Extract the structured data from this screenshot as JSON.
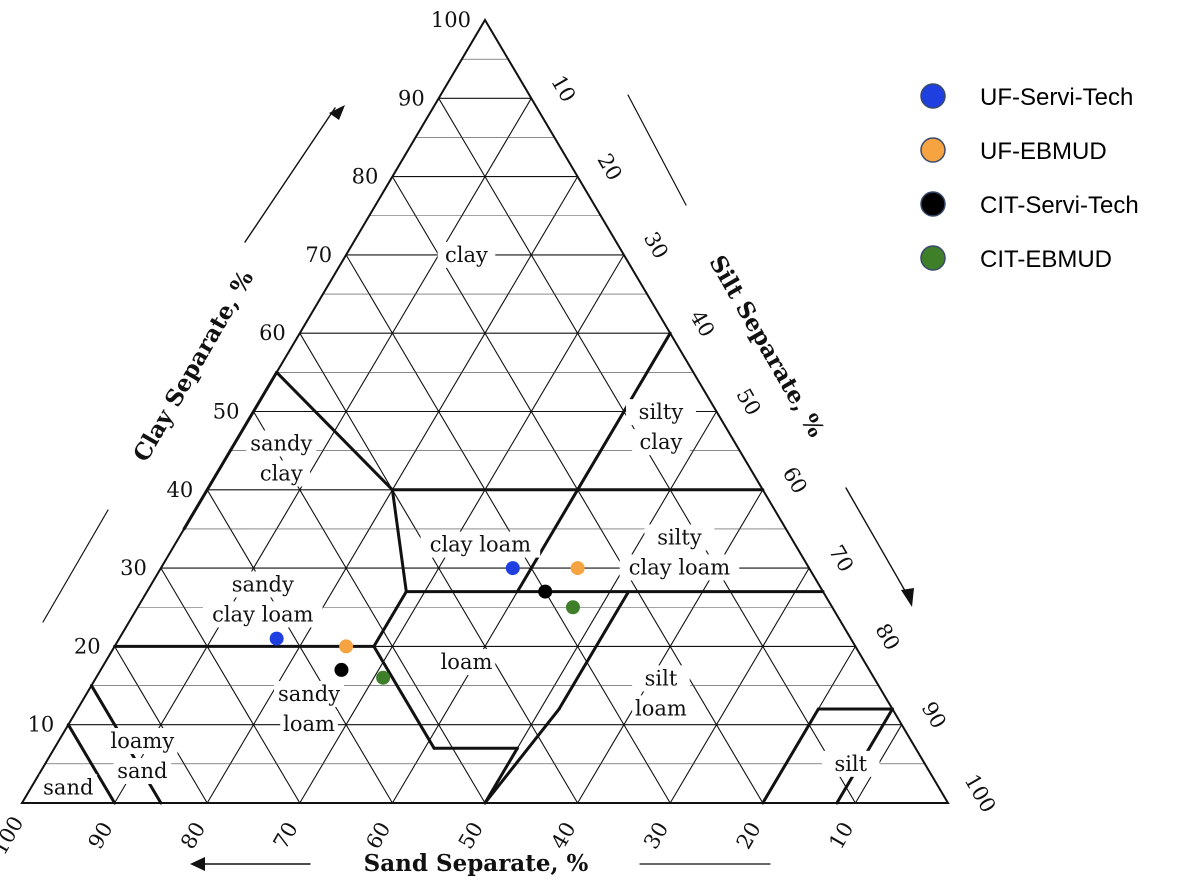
{
  "chart_data": {
    "type": "scatter",
    "subtype": "ternary (USDA soil texture triangle)",
    "axes": {
      "clay": {
        "label": "Clay Separate, %",
        "ticks": [
          "10",
          "20",
          "30",
          "40",
          "50",
          "60",
          "70",
          "80",
          "90",
          "100"
        ]
      },
      "silt": {
        "label": "Silt Separate, %",
        "ticks": [
          "10",
          "20",
          "30",
          "40",
          "50",
          "60",
          "70",
          "80",
          "90",
          "100"
        ]
      },
      "sand": {
        "label": "Sand Separate, %",
        "ticks": [
          "100",
          "90",
          "80",
          "70",
          "60",
          "50",
          "40",
          "30",
          "20",
          "10"
        ]
      }
    },
    "grid": true,
    "regions": [
      {
        "id": "clay",
        "lines": [
          "clay"
        ]
      },
      {
        "id": "silty-clay",
        "lines": [
          "silty",
          "clay"
        ]
      },
      {
        "id": "sandy-clay",
        "lines": [
          "sandy",
          "clay"
        ]
      },
      {
        "id": "clay-loam",
        "lines": [
          "clay loam"
        ]
      },
      {
        "id": "silty-clay-loam",
        "lines": [
          "silty",
          "clay loam"
        ]
      },
      {
        "id": "sandy-clay-loam",
        "lines": [
          "sandy",
          "clay loam"
        ]
      },
      {
        "id": "loam",
        "lines": [
          "loam"
        ]
      },
      {
        "id": "silt-loam",
        "lines": [
          "silt",
          "loam"
        ]
      },
      {
        "id": "sandy-loam",
        "lines": [
          "sandy",
          "loam"
        ]
      },
      {
        "id": "silt",
        "lines": [
          "silt"
        ]
      },
      {
        "id": "loamy-sand",
        "lines": [
          "loamy",
          "sand"
        ]
      },
      {
        "id": "sand",
        "lines": [
          "sand"
        ]
      }
    ],
    "legend_position": "top-right",
    "series": [
      {
        "name": "UF-Servi-Tech",
        "color": "#1f3fe0",
        "points": [
          {
            "sand": 32,
            "silt": 38,
            "clay": 30
          },
          {
            "sand": 62,
            "silt": 17,
            "clay": 21
          }
        ]
      },
      {
        "name": "UF-EBMUD",
        "color": "#f5a441",
        "points": [
          {
            "sand": 25,
            "silt": 45,
            "clay": 30
          },
          {
            "sand": 55,
            "silt": 25,
            "clay": 20
          }
        ]
      },
      {
        "name": "CIT-Servi-Tech",
        "color": "#000000",
        "points": [
          {
            "sand": 30,
            "silt": 43,
            "clay": 27
          },
          {
            "sand": 57,
            "silt": 26,
            "clay": 17
          }
        ]
      },
      {
        "name": "CIT-EBMUD",
        "color": "#3f7f2a",
        "points": [
          {
            "sand": 28,
            "silt": 47,
            "clay": 25
          },
          {
            "sand": 53,
            "silt": 31,
            "clay": 16
          }
        ]
      }
    ]
  }
}
